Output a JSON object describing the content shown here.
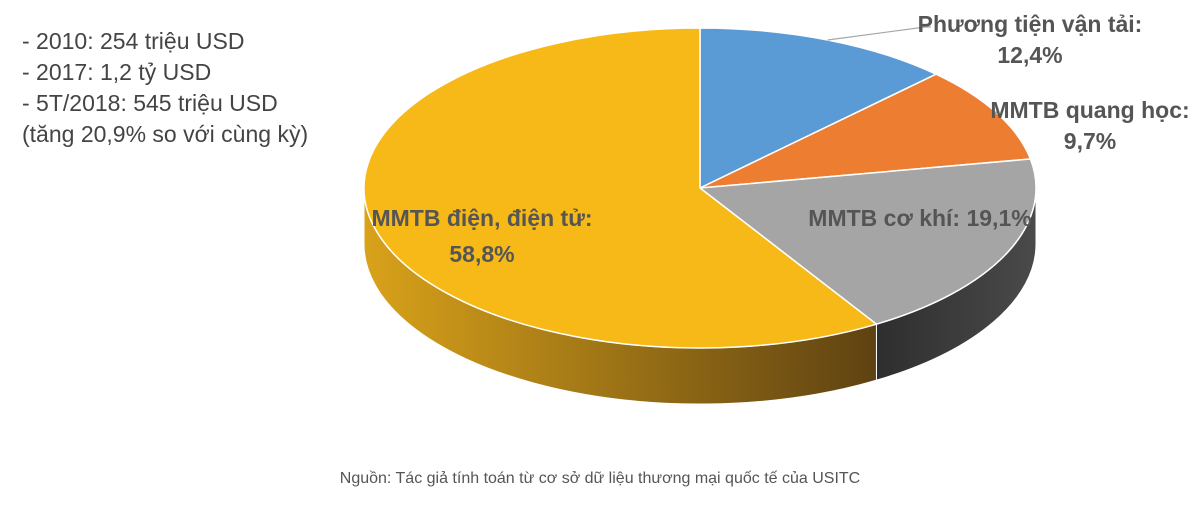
{
  "notes": [
    "- 2010: 254 triệu USD",
    "- 2017: 1,2 tỷ USD",
    "- 5T/2018: 545 triệu USD",
    "(tăng 20,9% so với cùng kỳ)"
  ],
  "chart_data": {
    "type": "pie",
    "title": "",
    "unit": "%",
    "slices": [
      {
        "name": "Phương tiện vận tải",
        "value": 12.4,
        "label": [
          "Phương tiện vận tải:",
          "12,4%"
        ],
        "color": "#5b9bd5"
      },
      {
        "name": "MMTB quang học",
        "value": 9.7,
        "label": [
          "MMTB quang học:",
          "9,7%"
        ],
        "color": "#ed7d31"
      },
      {
        "name": "MMTB cơ khí",
        "value": 19.1,
        "label": [
          "MMTB cơ khí: 19,1%"
        ],
        "color": "#a5a5a5"
      },
      {
        "name": "MMTB điện, điện tử",
        "value": 58.8,
        "label": [
          "MMTB điện, điện tử:",
          "58,8%"
        ],
        "color": "#f6b918"
      }
    ],
    "start_direction": "12 o'clock",
    "order": "clockwise",
    "style": "3D pie"
  },
  "source": "Nguồn: Tác giả tính toán từ cơ sở dữ liệu thương mại quốc tế của USITC"
}
